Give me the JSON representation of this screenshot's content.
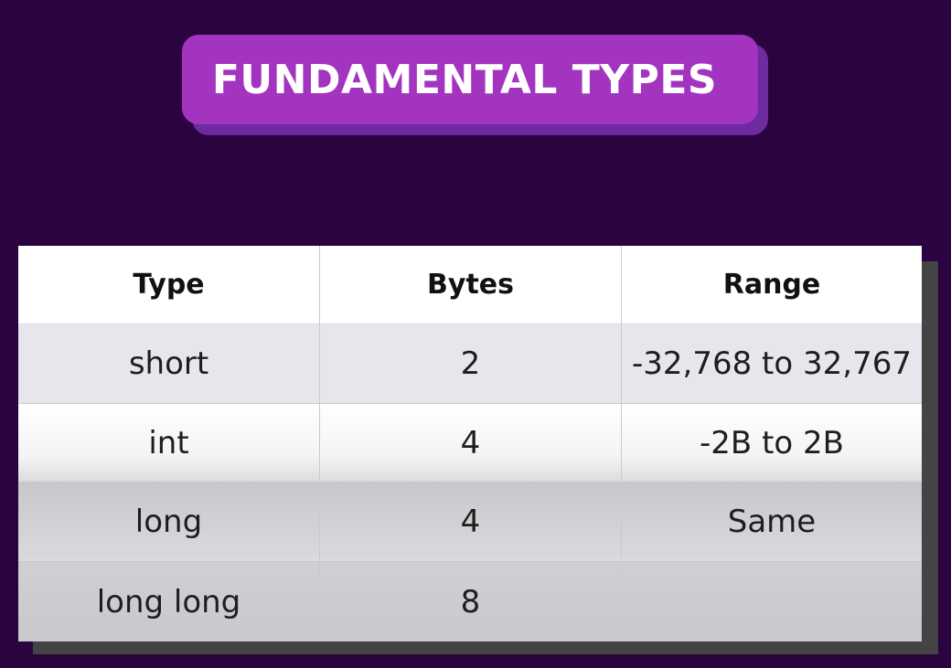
{
  "title": "FUNDAMENTAL TYPES",
  "table": {
    "headers": [
      "Type",
      "Bytes",
      "Range"
    ],
    "rows": [
      [
        "short",
        "2",
        "-32,768 to 32,767"
      ],
      [
        "int",
        "4",
        "-2B to 2B"
      ],
      [
        "long",
        "4",
        "Same"
      ],
      [
        "long long",
        "8",
        ""
      ]
    ]
  },
  "colors": {
    "background": "#2b0340",
    "title_badge": "#a334c0",
    "title_text": "#ffffff"
  }
}
